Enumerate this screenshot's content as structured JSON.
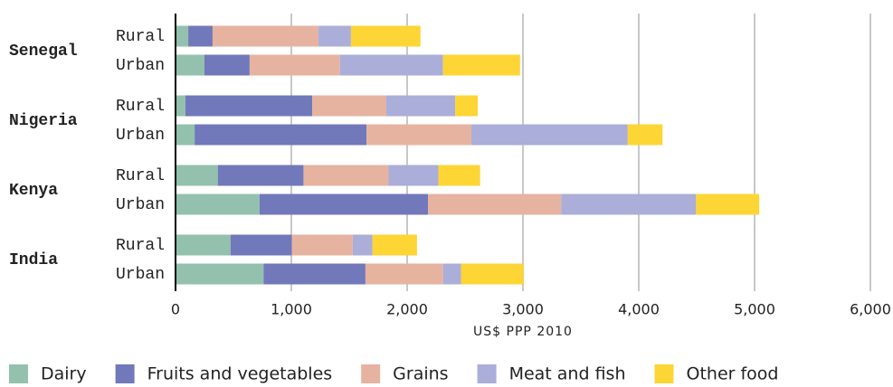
{
  "chart_data": {
    "type": "stacked-bar-horizontal",
    "groups": [
      "Senegal",
      "Nigeria",
      "Kenya",
      "India"
    ],
    "categories": [
      "Rural",
      "Urban",
      "Rural",
      "Urban",
      "Rural",
      "Urban",
      "Rural",
      "Urban"
    ],
    "series": [
      {
        "name": "Dairy",
        "color": "#93c1ad",
        "values": [
          110,
          250,
          85,
          165,
          365,
          725,
          475,
          760
        ]
      },
      {
        "name": "Fruits and vegetables",
        "color": "#7179bb",
        "values": [
          210,
          390,
          1095,
          1485,
          740,
          1455,
          530,
          880
        ]
      },
      {
        "name": "Grains",
        "color": "#e6b3a1",
        "values": [
          915,
          780,
          640,
          905,
          735,
          1150,
          525,
          670
        ]
      },
      {
        "name": "Meat and fish",
        "color": "#abaed8",
        "values": [
          280,
          890,
          595,
          1350,
          430,
          1165,
          170,
          155
        ]
      },
      {
        "name": "Other food",
        "color": "#fdd535",
        "values": [
          600,
          665,
          195,
          300,
          360,
          545,
          385,
          540
        ]
      }
    ],
    "xlabel": "US$ PPP 2010",
    "xlim": [
      0,
      6000
    ],
    "xticks": [
      0,
      {
        "value": 1000,
        "label": "1,000"
      },
      {
        "value": 2000,
        "label": "2,000"
      },
      {
        "value": 3000,
        "label": "3,000"
      },
      {
        "value": 4000,
        "label": "4,000"
      },
      {
        "value": 5000,
        "label": "5,000"
      },
      {
        "value": 6000,
        "label": "6,000"
      }
    ],
    "grid": true,
    "legend": "bottom"
  }
}
